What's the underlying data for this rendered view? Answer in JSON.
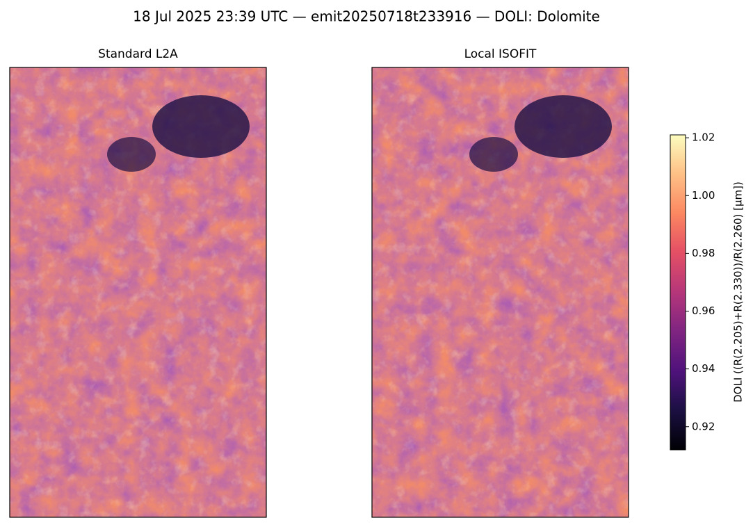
{
  "chart_data": {
    "type": "image",
    "title": "18 Jul 2025 23:39 UTC — emit20250718t233916 — DOLI: Dolomite",
    "panels": [
      {
        "title": "Standard L2A"
      },
      {
        "title": "Local ISOFIT"
      }
    ],
    "colorbar": {
      "label": "DOLI  ((R(2.205)+R(2.330))/R(2.260)  [µm])",
      "colormap": "magma",
      "lim": [
        0.912,
        1.021
      ],
      "ticks": [
        0.92,
        0.94,
        0.96,
        0.98,
        {
          "value": 1,
          "label": "1.00"
        },
        1.02
      ]
    }
  }
}
